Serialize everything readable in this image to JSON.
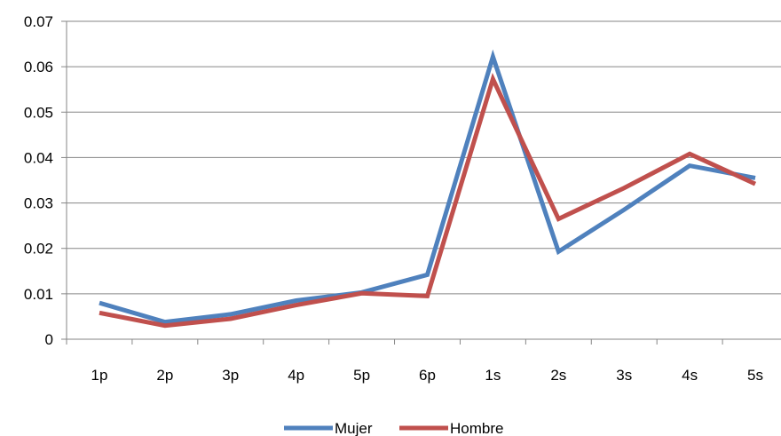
{
  "chart_data": {
    "type": "line",
    "categories": [
      "1p",
      "2p",
      "3p",
      "4p",
      "5p",
      "6p",
      "1s",
      "2s",
      "3s",
      "4s",
      "5s"
    ],
    "series": [
      {
        "name": "Mujer",
        "color": "#4F81BD",
        "values": [
          0.008,
          0.0038,
          0.0055,
          0.0085,
          0.0103,
          0.0142,
          0.0622,
          0.0193,
          0.0285,
          0.0382,
          0.0355
        ]
      },
      {
        "name": "Hombre",
        "color": "#C0504D",
        "values": [
          0.0058,
          0.003,
          0.0045,
          0.0075,
          0.0101,
          0.0095,
          0.0573,
          0.0265,
          0.0333,
          0.0408,
          0.0342
        ]
      }
    ],
    "yticks": [
      "0",
      "0.01",
      "0.02",
      "0.03",
      "0.04",
      "0.05",
      "0.06",
      "0.07"
    ],
    "ylim": [
      0,
      0.07
    ],
    "grid": true,
    "legend_position": "bottom"
  }
}
